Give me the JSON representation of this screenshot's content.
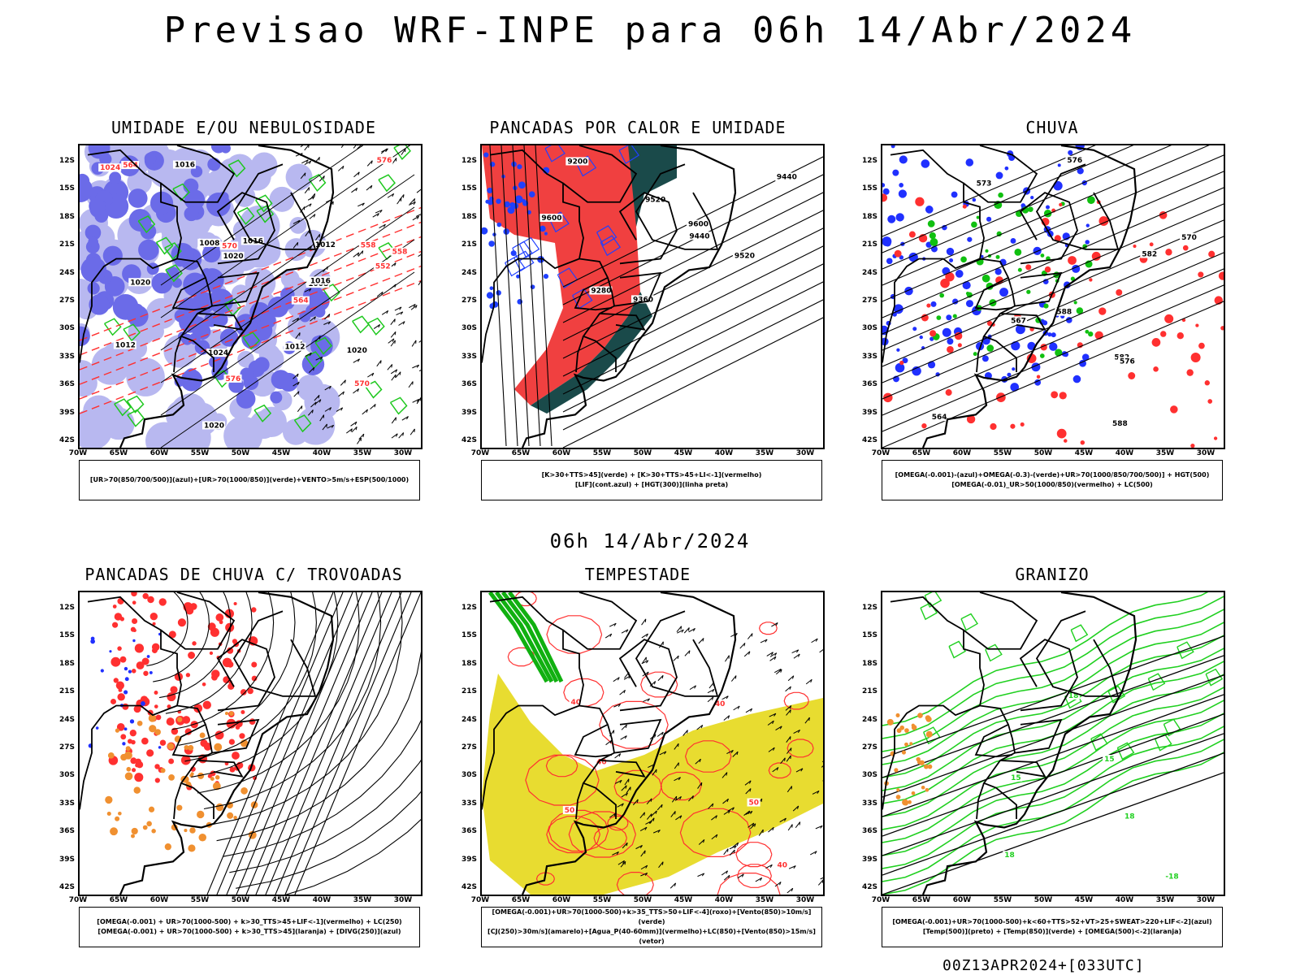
{
  "header": {
    "title": "Previsao WRF-INPE  para 06h 14/Abr/2024"
  },
  "middle_title": "06h 14/Abr/2024",
  "footer": "00Z13APR2024+[033UTC]",
  "lat_labels": [
    "12S",
    "15S",
    "18S",
    "21S",
    "24S",
    "27S",
    "30S",
    "33S",
    "36S",
    "39S",
    "42S"
  ],
  "lon_labels": [
    "70W",
    "65W",
    "60W",
    "55W",
    "50W",
    "45W",
    "40W",
    "35W",
    "30W"
  ],
  "panels": [
    {
      "title": "UMIDADE E/OU NEBULOSIDADE",
      "legend": [
        "[UR>70(850/700/500)](azul)+[UR>70(1000/850)](verde)+VENTO>5m/s+ESP(500/1000)"
      ],
      "labels": [
        "1008",
        "1012",
        "1008",
        "1016",
        "1012",
        "1016",
        "1016",
        "1020",
        "1012",
        "1020",
        "1024",
        "1020",
        "1020",
        "1024",
        "576",
        "570",
        "564",
        "558",
        "552",
        "576",
        "570",
        "564",
        "558"
      ],
      "colors": {
        "blue_dark": "#6b6be8",
        "blue_light": "#b8b8f0",
        "green": "#1ec81e",
        "red": "#ff3030"
      }
    },
    {
      "title": "PANCADAS POR CALOR E UMIDADE",
      "legend": [
        "[K>30+TTS>45](verde)  +  [K>30+TTS>45+LI<-1](vermelho)",
        "[LIF](cont.azul)  +  [HGT(300)](linha preta)"
      ],
      "labels": [
        "9600",
        "9520",
        "9440",
        "9360",
        "9280",
        "9200",
        "9600",
        "9520",
        "9440"
      ],
      "colors": {
        "red": "#f04040",
        "teal": "#1a4a4a",
        "blue": "#2040ff"
      }
    },
    {
      "title": "CHUVA",
      "legend": [
        "[OMEGA(-0.001)-(azul)+OMEGA(-0.3)-(verde)+UR>70(1000/850/700/500)]  +  HGT(500)",
        "[OMEGA(-0.01)_UR>50(1000/850)(vermelho)  +  LC(500)"
      ],
      "labels": [
        "588",
        "582",
        "576",
        "570",
        "564",
        "588",
        "582",
        "576",
        "573",
        "567"
      ],
      "colors": {
        "blue": "#2030ff",
        "green": "#10c010",
        "red": "#ff3030"
      }
    },
    {
      "title": "PANCADAS DE CHUVA C/ TROVOADAS",
      "legend": [
        "[OMEGA(-0.001)  +  UR>70(1000-500)  +  k>30_TTS>45+LIF<-1](vermelho)  +  LC(250)",
        "[OMEGA(-0.001)  +  UR>70(1000-500)  +  k>30_TTS>45](laranja)  +  [DIVG(250)](azul)"
      ],
      "labels": [],
      "colors": {
        "red": "#ff3030",
        "orange": "#f09030",
        "blue": "#2030ff"
      }
    },
    {
      "title": "TEMPESTADE",
      "legend": [
        "[OMEGA(-0.001)+UR>70(1000-500)+k>35_TTS>50+LIF<-4](roxo)+[Vento(850)>10m/s](verde)",
        "[CJ(250)>30m/s](amarelo)+[Agua_P(40-60mm)](vermelho)+LC(850)+[Vento(850)>15m/s](vetor)"
      ],
      "labels": [
        "40",
        "50",
        "40",
        "40",
        "50",
        "40"
      ],
      "colors": {
        "yellow": "#e8dc30",
        "red": "#ff3030",
        "green": "#10b010"
      }
    },
    {
      "title": "GRANIZO",
      "legend": [
        "[OMEGA(-0.001)+UR>70(1000-500)+k<60+TTS>52+VT>25+SWEAT>220+LIF<-2](azul)",
        "[Temp(500)](preto)  +  [Temp(850)](verde)  +  [OMEGA(500)<-2](laranja)"
      ],
      "labels": [
        "18",
        "18",
        "15",
        "18",
        "15",
        "-18"
      ],
      "colors": {
        "green": "#20d020",
        "orange": "#f09030",
        "black": "#000000"
      }
    }
  ]
}
